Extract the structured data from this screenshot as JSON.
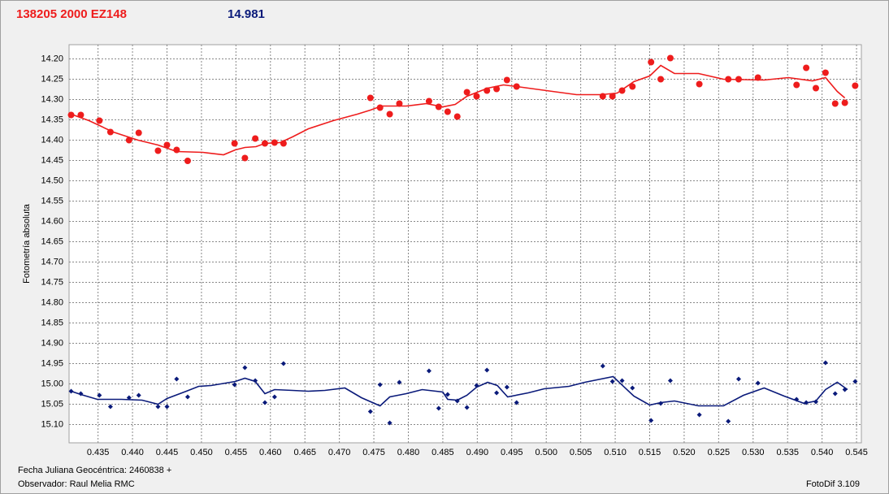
{
  "chart_data": {
    "type": "scatter",
    "title": "138205 2000 EZ148",
    "subtitle": "14.981",
    "ylabel": "Fotometría absoluta",
    "xlabel": "Fecha Juliana Geocéntrica: 2460838 +",
    "footer_left": "Observador: Raul Melia RMC",
    "footer_right": "FotoDif 3.109",
    "grid": true,
    "xlim": [
      0.4308,
      0.5457
    ],
    "ylim": [
      15.145,
      14.165
    ],
    "xticks": [
      0.435,
      {
        "value": 0.44,
        "label": "0.440"
      },
      0.445,
      {
        "value": 0.45,
        "label": "0.450"
      },
      0.455,
      {
        "value": 0.46,
        "label": "0.460"
      },
      0.465,
      {
        "value": 0.47,
        "label": "0.470"
      },
      0.475,
      {
        "value": 0.48,
        "label": "0.480"
      },
      0.485,
      {
        "value": 0.49,
        "label": "0.490"
      },
      0.495,
      {
        "value": 0.5,
        "label": "0.500"
      },
      0.505,
      {
        "value": 0.51,
        "label": "0.510"
      },
      0.515,
      {
        "value": 0.52,
        "label": "0.520"
      },
      0.525,
      {
        "value": 0.53,
        "label": "0.530"
      },
      0.535,
      {
        "value": 0.54,
        "label": "0.540"
      },
      0.545
    ],
    "yticks": [
      {
        "value": 14.2,
        "label": "14.20"
      },
      14.25,
      {
        "value": 14.3,
        "label": "14.30"
      },
      14.35,
      {
        "value": 14.4,
        "label": "14.40"
      },
      14.45,
      {
        "value": 14.5,
        "label": "14.50"
      },
      14.55,
      {
        "value": 14.6,
        "label": "14.60"
      },
      14.65,
      {
        "value": 14.7,
        "label": "14.70"
      },
      14.75,
      {
        "value": 14.8,
        "label": "14.80"
      },
      14.85,
      {
        "value": 14.9,
        "label": "14.90"
      },
      14.95,
      {
        "value": 15,
        "label": "15.00"
      },
      15.05,
      {
        "value": 15.1,
        "label": "15.10"
      }
    ],
    "series": [
      {
        "color": "#ee1c1c",
        "style": "markers",
        "marker": "circle",
        "x": [
          0.4311,
          0.4325,
          0.4352,
          0.4368,
          0.4395,
          0.4409,
          0.4437,
          0.445,
          0.4464,
          0.448,
          0.4548,
          0.4563,
          0.4578,
          0.4592,
          0.4606,
          0.4619,
          0.4745,
          0.4759,
          0.4773,
          0.4787,
          0.483,
          0.4844,
          0.4857,
          0.4871,
          0.4885,
          0.4899,
          0.4914,
          0.4928,
          0.4943,
          0.4957,
          0.5082,
          0.5096,
          0.511,
          0.5125,
          0.5152,
          0.5166,
          0.518,
          0.5222,
          0.5264,
          0.5279,
          0.5307,
          0.5363,
          0.5377,
          0.5391,
          0.5405,
          0.5419,
          0.5433,
          0.5448
        ],
        "values": [
          14.338,
          14.338,
          14.352,
          14.38,
          14.4,
          14.382,
          14.426,
          14.412,
          14.424,
          14.451,
          14.408,
          14.444,
          14.396,
          14.408,
          14.406,
          14.408,
          14.296,
          14.32,
          14.336,
          14.31,
          14.304,
          14.318,
          14.33,
          14.342,
          14.282,
          14.292,
          14.278,
          14.274,
          14.252,
          14.268,
          14.292,
          14.292,
          14.278,
          14.268,
          14.208,
          14.25,
          14.198,
          14.262,
          14.25,
          14.25,
          14.246,
          14.264,
          14.222,
          14.272,
          14.234,
          14.31,
          14.308,
          14.266
        ]
      },
      {
        "color": "#ee1c1c",
        "style": "line",
        "x": [
          0.4311,
          0.4337,
          0.4372,
          0.4408,
          0.4437,
          0.4464,
          0.4502,
          0.4532,
          0.4549,
          0.4563,
          0.4579,
          0.4592,
          0.4614,
          0.4632,
          0.4655,
          0.4691,
          0.4726,
          0.4745,
          0.4761,
          0.4797,
          0.4826,
          0.485,
          0.4868,
          0.4885,
          0.4915,
          0.4938,
          0.4957,
          0.5009,
          0.5044,
          0.508,
          0.5103,
          0.5127,
          0.515,
          0.5166,
          0.5186,
          0.5221,
          0.5257,
          0.5316,
          0.5351,
          0.5386,
          0.5405,
          0.5422,
          0.5433
        ],
        "values": [
          14.336,
          14.352,
          14.38,
          14.4,
          14.412,
          14.428,
          14.43,
          14.436,
          14.424,
          14.418,
          14.416,
          14.408,
          14.406,
          14.392,
          14.372,
          14.352,
          14.336,
          14.326,
          14.316,
          14.316,
          14.31,
          14.318,
          14.312,
          14.292,
          14.272,
          14.264,
          14.268,
          14.28,
          14.288,
          14.288,
          14.284,
          14.256,
          14.242,
          14.216,
          14.236,
          14.236,
          14.25,
          14.252,
          14.246,
          14.254,
          14.246,
          14.28,
          14.296
        ]
      },
      {
        "color": "#0a1a7a",
        "style": "markers",
        "marker": "diamond",
        "x": [
          0.4311,
          0.4325,
          0.4352,
          0.4368,
          0.4395,
          0.4409,
          0.4437,
          0.445,
          0.4464,
          0.448,
          0.4548,
          0.4563,
          0.4578,
          0.4592,
          0.4606,
          0.4619,
          0.4745,
          0.4759,
          0.4773,
          0.4787,
          0.483,
          0.4844,
          0.4857,
          0.4871,
          0.4885,
          0.4899,
          0.4914,
          0.4928,
          0.4943,
          0.4957,
          0.5082,
          0.5096,
          0.511,
          0.5125,
          0.5152,
          0.5166,
          0.518,
          0.5222,
          0.5264,
          0.5279,
          0.5307,
          0.5363,
          0.5377,
          0.5391,
          0.5405,
          0.5419,
          0.5433,
          0.5448
        ],
        "values": [
          15.018,
          15.024,
          15.028,
          15.056,
          15.034,
          15.028,
          15.056,
          15.056,
          14.988,
          15.032,
          15.002,
          14.96,
          14.992,
          15.046,
          15.032,
          14.95,
          15.068,
          15.002,
          15.096,
          14.996,
          14.968,
          15.06,
          15.026,
          15.042,
          15.058,
          15.004,
          14.966,
          15.022,
          15.008,
          15.046,
          14.956,
          14.994,
          14.992,
          15.01,
          15.09,
          15.048,
          14.992,
          15.076,
          15.092,
          14.988,
          14.998,
          15.038,
          15.046,
          15.044,
          14.948,
          15.024,
          15.014,
          14.994
        ]
      },
      {
        "color": "#0a1a7a",
        "style": "line",
        "x": [
          0.4311,
          0.4325,
          0.4349,
          0.4384,
          0.4414,
          0.4437,
          0.445,
          0.4478,
          0.4496,
          0.4514,
          0.4549,
          0.4563,
          0.4578,
          0.4592,
          0.4606,
          0.4632,
          0.4655,
          0.4679,
          0.4708,
          0.4732,
          0.4759,
          0.4773,
          0.4797,
          0.482,
          0.485,
          0.4857,
          0.4871,
          0.4885,
          0.4899,
          0.4915,
          0.4929,
          0.4944,
          0.4974,
          0.4997,
          0.5033,
          0.5056,
          0.5097,
          0.5127,
          0.515,
          0.5166,
          0.5186,
          0.5221,
          0.5257,
          0.5286,
          0.5316,
          0.5345,
          0.5374,
          0.5391,
          0.5405,
          0.5422,
          0.5437
        ],
        "values": [
          15.018,
          15.026,
          15.038,
          15.038,
          15.04,
          15.05,
          15.036,
          15.018,
          15.006,
          15.004,
          14.994,
          14.986,
          14.994,
          15.024,
          15.014,
          15.016,
          15.018,
          15.016,
          15.01,
          15.034,
          15.054,
          15.032,
          15.024,
          15.014,
          15.02,
          15.038,
          15.04,
          15.028,
          15.008,
          14.996,
          15.004,
          15.032,
          15.022,
          15.012,
          15.006,
          14.996,
          14.982,
          15.03,
          15.052,
          15.046,
          15.042,
          15.054,
          15.054,
          15.028,
          15.01,
          15.03,
          15.048,
          15.042,
          15.014,
          14.996,
          15.014
        ]
      }
    ]
  }
}
